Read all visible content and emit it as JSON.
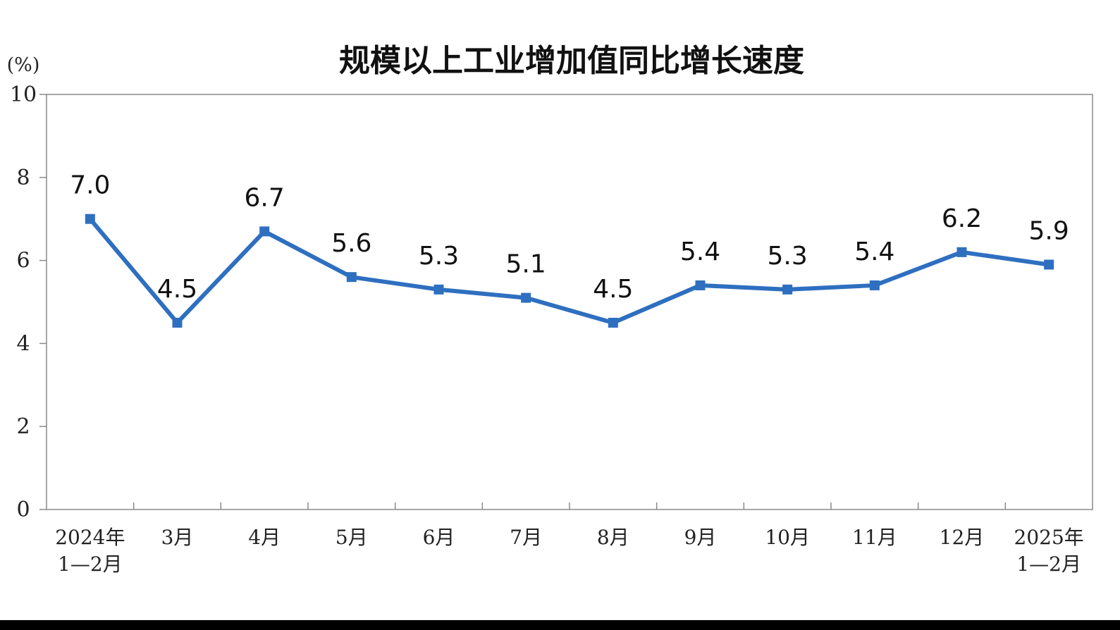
{
  "chart_data": {
    "type": "line",
    "title": "规模以上工业增加值同比增长速度",
    "unit_label": "(%)",
    "categories": [
      [
        "2024年",
        "1—2月"
      ],
      [
        "3月"
      ],
      [
        "4月"
      ],
      [
        "5月"
      ],
      [
        "6月"
      ],
      [
        "7月"
      ],
      [
        "8月"
      ],
      [
        "9月"
      ],
      [
        "10月"
      ],
      [
        "11月"
      ],
      [
        "12月"
      ],
      [
        "2025年",
        "1—2月"
      ]
    ],
    "series": [
      {
        "values": [
          7.0,
          4.5,
          6.7,
          5.6,
          5.3,
          5.1,
          4.5,
          5.4,
          5.3,
          5.4,
          6.2,
          5.9
        ],
        "labels": [
          "7.0",
          "4.5",
          "6.7",
          "5.6",
          "5.3",
          "5.1",
          "4.5",
          "5.4",
          "5.3",
          "5.4",
          "6.2",
          "5.9"
        ],
        "color": "#2e6fc0"
      }
    ],
    "ylim": [
      0,
      10
    ],
    "yticks": [
      0,
      2,
      4,
      6,
      8,
      10
    ],
    "grid": false,
    "legend": "none"
  }
}
